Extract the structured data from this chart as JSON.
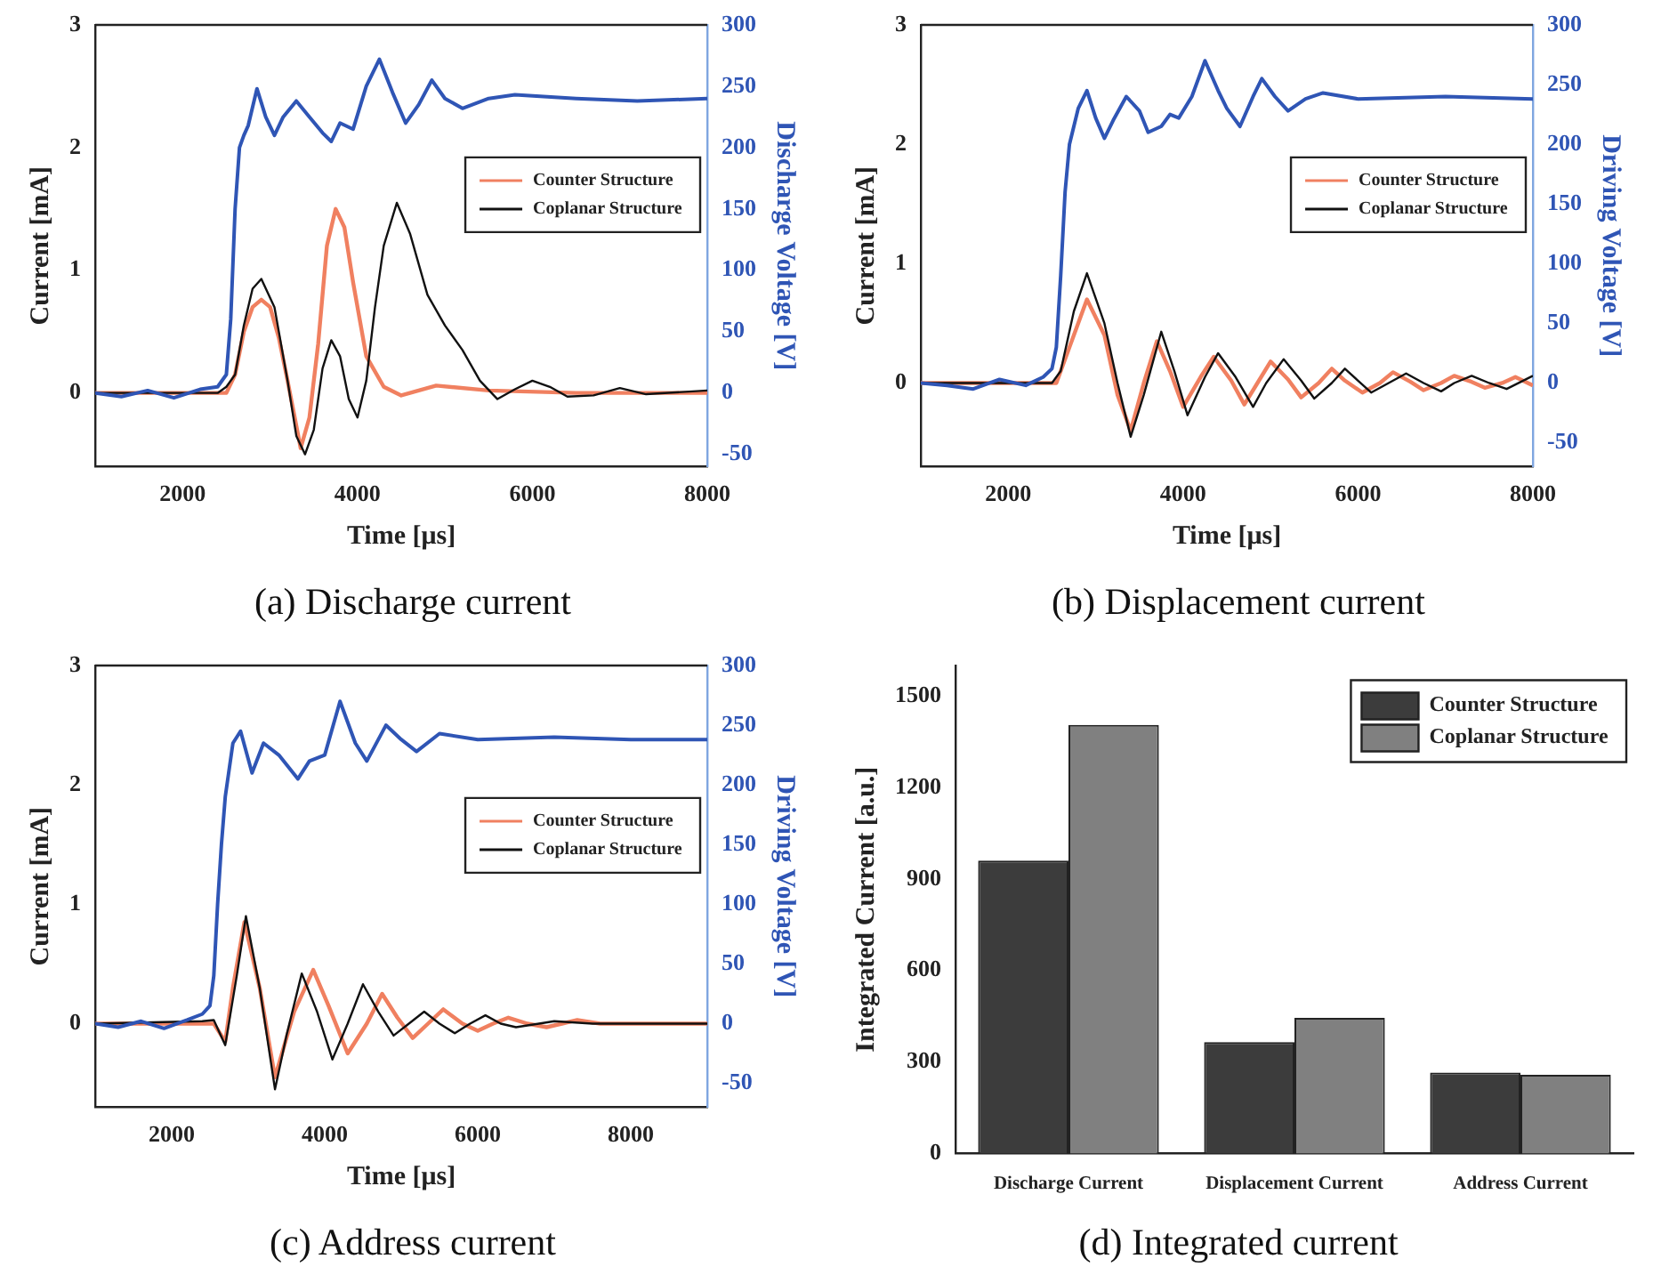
{
  "chart_data": [
    {
      "type": "line",
      "title": "(a) Discharge current",
      "xlabel": "Time [μs]",
      "ylabel": "Current [mA]",
      "y2label": "Discharge Voltage [V]",
      "xlim": [
        1000,
        8000
      ],
      "xticks": [
        2000,
        4000,
        6000,
        8000
      ],
      "ylim": [
        -0.6,
        3
      ],
      "yticks": [
        0,
        1,
        2,
        3
      ],
      "y2lim": [
        -60,
        300
      ],
      "y2ticks": [
        -50,
        0,
        50,
        100,
        150,
        200,
        250,
        300
      ],
      "legend": "right",
      "series": [
        {
          "axis": "y2",
          "color": "#2f55b5",
          "x": [
            1000,
            1300,
            1600,
            1900,
            2200,
            2400,
            2500,
            2550,
            2600,
            2650,
            2700,
            2750,
            2850,
            2950,
            3050,
            3150,
            3300,
            3450,
            3600,
            3700,
            3800,
            3950,
            4100,
            4250,
            4400,
            4550,
            4700,
            4850,
            5000,
            5200,
            5500,
            5800,
            6500,
            7200,
            8000
          ],
          "values": [
            0,
            -3,
            2,
            -4,
            3,
            5,
            15,
            60,
            150,
            200,
            210,
            218,
            248,
            225,
            210,
            225,
            238,
            225,
            212,
            205,
            220,
            215,
            250,
            272,
            245,
            220,
            235,
            255,
            240,
            232,
            240,
            243,
            240,
            238,
            240
          ]
        },
        {
          "name": "Counter Structure",
          "color": "#f08060",
          "x": [
            1000,
            2500,
            2600,
            2700,
            2800,
            2900,
            3000,
            3100,
            3200,
            3350,
            3450,
            3550,
            3650,
            3750,
            3850,
            3950,
            4100,
            4300,
            4500,
            4900,
            5500,
            6500,
            8000
          ],
          "values": [
            0,
            0,
            0.15,
            0.5,
            0.7,
            0.76,
            0.7,
            0.45,
            0.1,
            -0.45,
            -0.2,
            0.4,
            1.2,
            1.5,
            1.35,
            0.9,
            0.3,
            0.05,
            -0.02,
            0.06,
            0.02,
            0,
            0
          ]
        },
        {
          "name": "Coplanar Structure",
          "color": "#111111",
          "x": [
            1000,
            2400,
            2500,
            2600,
            2700,
            2800,
            2900,
            3050,
            3200,
            3300,
            3400,
            3500,
            3600,
            3700,
            3800,
            3900,
            4000,
            4100,
            4200,
            4300,
            4450,
            4600,
            4800,
            5000,
            5200,
            5400,
            5600,
            5800,
            6000,
            6200,
            6400,
            6700,
            7000,
            7300,
            8000
          ],
          "values": [
            0,
            0,
            0.05,
            0.15,
            0.55,
            0.85,
            0.93,
            0.7,
            0.1,
            -0.35,
            -0.5,
            -0.3,
            0.2,
            0.43,
            0.3,
            -0.05,
            -0.2,
            0.1,
            0.7,
            1.2,
            1.55,
            1.3,
            0.8,
            0.55,
            0.35,
            0.1,
            -0.05,
            0.03,
            0.1,
            0.05,
            -0.03,
            -0.02,
            0.04,
            -0.01,
            0.02
          ]
        }
      ]
    },
    {
      "type": "line",
      "title": "(b) Displacement current",
      "xlabel": "Time [μs]",
      "ylabel": "Current [mA]",
      "y2label": "Driving Voltage [V]",
      "xlim": [
        1000,
        8000
      ],
      "xticks": [
        2000,
        4000,
        6000,
        8000
      ],
      "ylim": [
        -0.7,
        3
      ],
      "yticks": [
        0,
        1,
        2,
        3
      ],
      "y2lim": [
        -70,
        300
      ],
      "y2ticks": [
        -50,
        0,
        50,
        100,
        150,
        200,
        250,
        300
      ],
      "legend": "right",
      "series": [
        {
          "axis": "y2",
          "color": "#2f55b5",
          "x": [
            1000,
            1300,
            1600,
            1900,
            2200,
            2400,
            2500,
            2550,
            2600,
            2650,
            2700,
            2800,
            2900,
            3000,
            3100,
            3200,
            3350,
            3500,
            3600,
            3750,
            3850,
            3950,
            4100,
            4250,
            4400,
            4500,
            4650,
            4800,
            4900,
            5050,
            5200,
            5400,
            5600,
            6000,
            7000,
            8000
          ],
          "values": [
            0,
            -2,
            -5,
            3,
            -2,
            5,
            12,
            30,
            90,
            160,
            200,
            230,
            245,
            222,
            205,
            220,
            240,
            228,
            210,
            215,
            225,
            222,
            240,
            270,
            245,
            230,
            215,
            240,
            255,
            240,
            228,
            238,
            243,
            238,
            240,
            238
          ]
        },
        {
          "name": "Counter Structure",
          "color": "#f08060",
          "x": [
            1000,
            2550,
            2700,
            2900,
            3100,
            3250,
            3400,
            3550,
            3700,
            3850,
            4000,
            4200,
            4350,
            4550,
            4700,
            4850,
            5000,
            5200,
            5350,
            5550,
            5700,
            5850,
            6050,
            6250,
            6400,
            6600,
            6750,
            6950,
            7100,
            7300,
            7450,
            7650,
            7800,
            8000
          ],
          "values": [
            0,
            0,
            0.3,
            0.7,
            0.4,
            -0.1,
            -0.4,
            0,
            0.35,
            0.1,
            -0.2,
            0.05,
            0.22,
            0.02,
            -0.18,
            0,
            0.18,
            0.03,
            -0.12,
            0,
            0.12,
            0.02,
            -0.08,
            0,
            0.09,
            0.01,
            -0.06,
            0,
            0.06,
            0.01,
            -0.04,
            0,
            0.05,
            -0.02
          ]
        },
        {
          "name": "Coplanar Structure",
          "color": "#111111",
          "x": [
            1000,
            2500,
            2600,
            2750,
            2900,
            3100,
            3250,
            3400,
            3550,
            3750,
            3900,
            4050,
            4250,
            4400,
            4600,
            4800,
            4950,
            5150,
            5350,
            5500,
            5700,
            5850,
            6000,
            6150,
            6350,
            6550,
            6750,
            6950,
            7100,
            7300,
            7500,
            7700,
            8000
          ],
          "values": [
            0,
            0,
            0.1,
            0.6,
            0.92,
            0.5,
            0,
            -0.45,
            -0.1,
            0.43,
            0.1,
            -0.27,
            0.05,
            0.25,
            0.05,
            -0.2,
            0,
            0.2,
            0.02,
            -0.13,
            0,
            0.12,
            0.02,
            -0.08,
            0,
            0.08,
            0,
            -0.07,
            0,
            0.06,
            0,
            -0.05,
            0.06
          ]
        }
      ]
    },
    {
      "type": "line",
      "title": "(c) Address current",
      "xlabel": "Time [μs]",
      "ylabel": "Current [mA]",
      "y2label": "Driving Voltage [V]",
      "xlim": [
        1000,
        9000
      ],
      "xticks": [
        2000,
        4000,
        6000,
        8000
      ],
      "ylim": [
        -0.7,
        3
      ],
      "yticks": [
        0,
        1,
        2,
        3
      ],
      "y2lim": [
        -70,
        300
      ],
      "y2ticks": [
        -50,
        0,
        50,
        100,
        150,
        200,
        250,
        300
      ],
      "legend": "right",
      "series": [
        {
          "axis": "y2",
          "color": "#2f55b5",
          "x": [
            1000,
            1300,
            1600,
            1900,
            2200,
            2400,
            2500,
            2550,
            2600,
            2650,
            2700,
            2800,
            2900,
            3050,
            3200,
            3400,
            3650,
            3800,
            4000,
            4200,
            4400,
            4550,
            4800,
            5000,
            5200,
            5500,
            6000,
            7000,
            8000,
            9000
          ],
          "values": [
            0,
            -3,
            2,
            -4,
            3,
            8,
            15,
            40,
            100,
            150,
            190,
            235,
            245,
            210,
            235,
            225,
            205,
            220,
            225,
            270,
            235,
            220,
            250,
            238,
            228,
            243,
            238,
            240,
            238,
            238
          ]
        },
        {
          "name": "Counter Structure",
          "color": "#f08060",
          "x": [
            1000,
            2400,
            2550,
            2700,
            2800,
            2950,
            3150,
            3350,
            3600,
            3850,
            4050,
            4300,
            4550,
            4750,
            4950,
            5150,
            5350,
            5550,
            5800,
            6000,
            6200,
            6400,
            6650,
            6900,
            7100,
            7300,
            7600,
            8000,
            9000
          ],
          "values": [
            0,
            0,
            0,
            -0.15,
            0.3,
            0.85,
            0.3,
            -0.45,
            0.1,
            0.45,
            0.15,
            -0.25,
            0,
            0.25,
            0.05,
            -0.12,
            0,
            0.12,
            0,
            -0.06,
            0,
            0.05,
            0,
            -0.03,
            0,
            0.03,
            0,
            0,
            0
          ]
        },
        {
          "name": "Coplanar Structure",
          "color": "#111111",
          "x": [
            1000,
            2400,
            2550,
            2700,
            2850,
            2970,
            3150,
            3350,
            3500,
            3700,
            3900,
            4100,
            4300,
            4500,
            4700,
            4900,
            5100,
            5300,
            5500,
            5700,
            5900,
            6100,
            6300,
            6500,
            6800,
            7000,
            7500,
            8000,
            9000
          ],
          "values": [
            0,
            0.02,
            0.03,
            -0.18,
            0.4,
            0.9,
            0.3,
            -0.55,
            -0.1,
            0.42,
            0.1,
            -0.3,
            0,
            0.33,
            0.1,
            -0.1,
            0,
            0.1,
            0,
            -0.08,
            0,
            0.07,
            0,
            -0.03,
            0,
            0.02,
            0,
            0,
            0
          ]
        }
      ]
    },
    {
      "type": "bar",
      "title": "(d) Integrated current",
      "ylabel": "Integrated Current [a.u.]",
      "categories": [
        "Discharge Current",
        "Displacement Current",
        "Address Current"
      ],
      "ylim": [
        0,
        1600
      ],
      "yticks": [
        0,
        300,
        600,
        900,
        1200,
        1500
      ],
      "legend": "top right",
      "series": [
        {
          "name": "Counter Structure",
          "color": "#3c3c3c",
          "values": [
            960,
            365,
            265
          ]
        },
        {
          "name": "Coplanar Structure",
          "color": "#808080",
          "values": [
            1405,
            445,
            258
          ]
        }
      ]
    }
  ]
}
